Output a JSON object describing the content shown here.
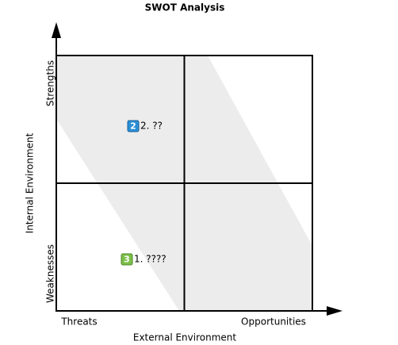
{
  "title": "SWOT Analysis",
  "y_axis": {
    "label": "Internal Environment",
    "top": "Strengths",
    "bottom": "Weaknesses"
  },
  "x_axis": {
    "label": "External Environment",
    "left": "Threats",
    "right": "Opportunities"
  },
  "items": [
    {
      "badge": "2",
      "label": "2. ??"
    },
    {
      "badge": "3",
      "label": "1. ????"
    }
  ]
}
